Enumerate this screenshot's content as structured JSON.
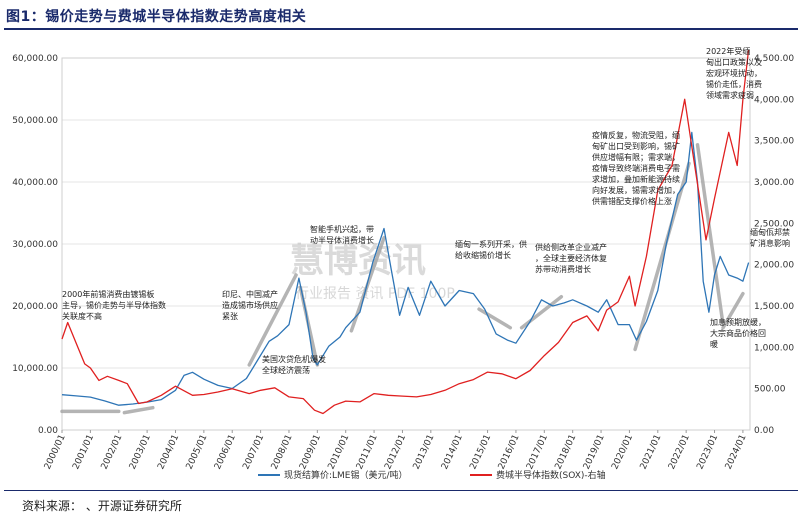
{
  "title": "图1：锡价走势与费城半导体指数走势高度相关",
  "source": "资料来源：   、开源证券研究所",
  "watermark": {
    "main": "慧博资讯",
    "sub": "行业报告 资讯 PDF 100P"
  },
  "chart_data": {
    "type": "line",
    "y_left": {
      "ticks": [
        "0.00",
        "10,000.00",
        "20,000.00",
        "30,000.00",
        "40,000.00",
        "50,000.00",
        "60,000.00"
      ],
      "range": [
        0,
        60000
      ]
    },
    "y_right": {
      "ticks": [
        "0.00",
        "500.00",
        "1,000.00",
        "1,500.00",
        "2,000.00",
        "2,500.00",
        "3,000.00",
        "3,500.00",
        "4,000.00",
        "4,500.00"
      ],
      "range": [
        0,
        4500
      ]
    },
    "x_ticks": [
      "2000/01",
      "2001/01",
      "2002/01",
      "2003/01",
      "2004/01",
      "2005/01",
      "2006/01",
      "2007/01",
      "2008/01",
      "2009/01",
      "2010/01",
      "2011/01",
      "2012/01",
      "2013/01",
      "2014/01",
      "2015/01",
      "2016/01",
      "2017/01",
      "2018/01",
      "2019/01",
      "2020/01",
      "2021/01",
      "2022/01",
      "2023/01",
      "2024/01"
    ],
    "x_range": [
      2000.0,
      2024.25
    ],
    "series": [
      {
        "name": "现货结算价:LME锡（美元/吨）",
        "axis": "left",
        "color": "#2e75b6",
        "points": [
          [
            2000.0,
            5700
          ],
          [
            2000.5,
            5500
          ],
          [
            2001.0,
            5300
          ],
          [
            2001.5,
            4700
          ],
          [
            2002.0,
            4000
          ],
          [
            2002.5,
            4200
          ],
          [
            2003.0,
            4500
          ],
          [
            2003.5,
            4900
          ],
          [
            2004.0,
            6400
          ],
          [
            2004.3,
            8800
          ],
          [
            2004.6,
            9300
          ],
          [
            2005.0,
            8200
          ],
          [
            2005.5,
            7200
          ],
          [
            2006.0,
            6700
          ],
          [
            2006.5,
            8300
          ],
          [
            2006.9,
            11300
          ],
          [
            2007.3,
            14300
          ],
          [
            2007.6,
            15200
          ],
          [
            2008.0,
            17000
          ],
          [
            2008.35,
            24500
          ],
          [
            2008.6,
            19000
          ],
          [
            2008.85,
            11500
          ],
          [
            2009.0,
            10500
          ],
          [
            2009.4,
            13500
          ],
          [
            2009.8,
            15000
          ],
          [
            2010.0,
            16500
          ],
          [
            2010.5,
            19000
          ],
          [
            2010.95,
            27000
          ],
          [
            2011.35,
            32500
          ],
          [
            2011.6,
            26000
          ],
          [
            2011.9,
            18500
          ],
          [
            2012.2,
            23000
          ],
          [
            2012.6,
            18500
          ],
          [
            2013.0,
            24000
          ],
          [
            2013.5,
            20000
          ],
          [
            2014.0,
            22500
          ],
          [
            2014.5,
            22000
          ],
          [
            2014.9,
            19500
          ],
          [
            2015.3,
            15500
          ],
          [
            2015.7,
            14500
          ],
          [
            2016.0,
            14000
          ],
          [
            2016.5,
            17500
          ],
          [
            2016.9,
            21000
          ],
          [
            2017.3,
            20000
          ],
          [
            2017.7,
            20500
          ],
          [
            2018.0,
            21000
          ],
          [
            2018.5,
            20000
          ],
          [
            2018.9,
            19000
          ],
          [
            2019.2,
            21000
          ],
          [
            2019.6,
            17000
          ],
          [
            2020.0,
            17000
          ],
          [
            2020.25,
            14500
          ],
          [
            2020.6,
            17500
          ],
          [
            2021.0,
            22500
          ],
          [
            2021.3,
            30000
          ],
          [
            2021.7,
            38000
          ],
          [
            2022.0,
            40000
          ],
          [
            2022.2,
            48000
          ],
          [
            2022.4,
            40000
          ],
          [
            2022.6,
            24000
          ],
          [
            2022.8,
            19000
          ],
          [
            2023.0,
            25000
          ],
          [
            2023.2,
            28000
          ],
          [
            2023.5,
            25000
          ],
          [
            2023.8,
            24500
          ],
          [
            2024.0,
            24000
          ],
          [
            2024.2,
            27000
          ]
        ]
      },
      {
        "name": "费城半导体指数(SOX)-右轴",
        "axis": "right",
        "color": "#e02020",
        "points": [
          [
            2000.0,
            1100
          ],
          [
            2000.2,
            1300
          ],
          [
            2000.5,
            1050
          ],
          [
            2000.8,
            800
          ],
          [
            2001.0,
            750
          ],
          [
            2001.3,
            600
          ],
          [
            2001.6,
            650
          ],
          [
            2002.0,
            600
          ],
          [
            2002.3,
            560
          ],
          [
            2002.7,
            320
          ],
          [
            2003.0,
            340
          ],
          [
            2003.5,
            420
          ],
          [
            2004.0,
            530
          ],
          [
            2004.6,
            420
          ],
          [
            2005.0,
            430
          ],
          [
            2005.5,
            460
          ],
          [
            2006.0,
            500
          ],
          [
            2006.6,
            440
          ],
          [
            2007.0,
            480
          ],
          [
            2007.5,
            510
          ],
          [
            2008.0,
            400
          ],
          [
            2008.5,
            380
          ],
          [
            2008.9,
            240
          ],
          [
            2009.2,
            200
          ],
          [
            2009.6,
            300
          ],
          [
            2010.0,
            350
          ],
          [
            2010.5,
            340
          ],
          [
            2011.0,
            440
          ],
          [
            2011.5,
            420
          ],
          [
            2012.0,
            410
          ],
          [
            2012.5,
            400
          ],
          [
            2013.0,
            430
          ],
          [
            2013.5,
            480
          ],
          [
            2014.0,
            560
          ],
          [
            2014.5,
            610
          ],
          [
            2015.0,
            700
          ],
          [
            2015.5,
            680
          ],
          [
            2016.0,
            620
          ],
          [
            2016.5,
            720
          ],
          [
            2017.0,
            900
          ],
          [
            2017.5,
            1060
          ],
          [
            2018.0,
            1300
          ],
          [
            2018.5,
            1380
          ],
          [
            2018.9,
            1200
          ],
          [
            2019.2,
            1450
          ],
          [
            2019.6,
            1550
          ],
          [
            2020.0,
            1860
          ],
          [
            2020.2,
            1500
          ],
          [
            2020.6,
            2100
          ],
          [
            2021.0,
            2900
          ],
          [
            2021.5,
            3200
          ],
          [
            2021.95,
            4000
          ],
          [
            2022.3,
            3200
          ],
          [
            2022.7,
            2300
          ],
          [
            2023.0,
            2800
          ],
          [
            2023.5,
            3600
          ],
          [
            2023.8,
            3200
          ],
          [
            2024.0,
            4000
          ],
          [
            2024.2,
            4600
          ]
        ]
      }
    ],
    "annotations": [
      "2000年前锡消费由镀锡板主导，锡价走势与半导体指数关联度不高",
      "印尼、中国减产造成锡市场供应紧张",
      "美国次贷危机爆发全球经济震荡",
      "智能手机兴起，带动半导体消费增长",
      "缅甸一系列开采，供给收缩锡价增长",
      "供给侧改革企业减产，全球主要经济体复苏带动消费增长",
      "疫情反复，物流受阻，缅甸矿出口受到影响，锡矿供应增幅有限；需求端，疫情导致终端消费电子需求增加，叠加新能源持续向好发展，锡需求增加，供需错配支撑价格上涨",
      "2022年受缅甸出口政策以及宏观环境扰动，锡价走低，消费领域需求疲弱",
      "加息预期放缓，大宗商品价格回暖",
      "缅甸佤邦禁矿消息影响"
    ]
  }
}
